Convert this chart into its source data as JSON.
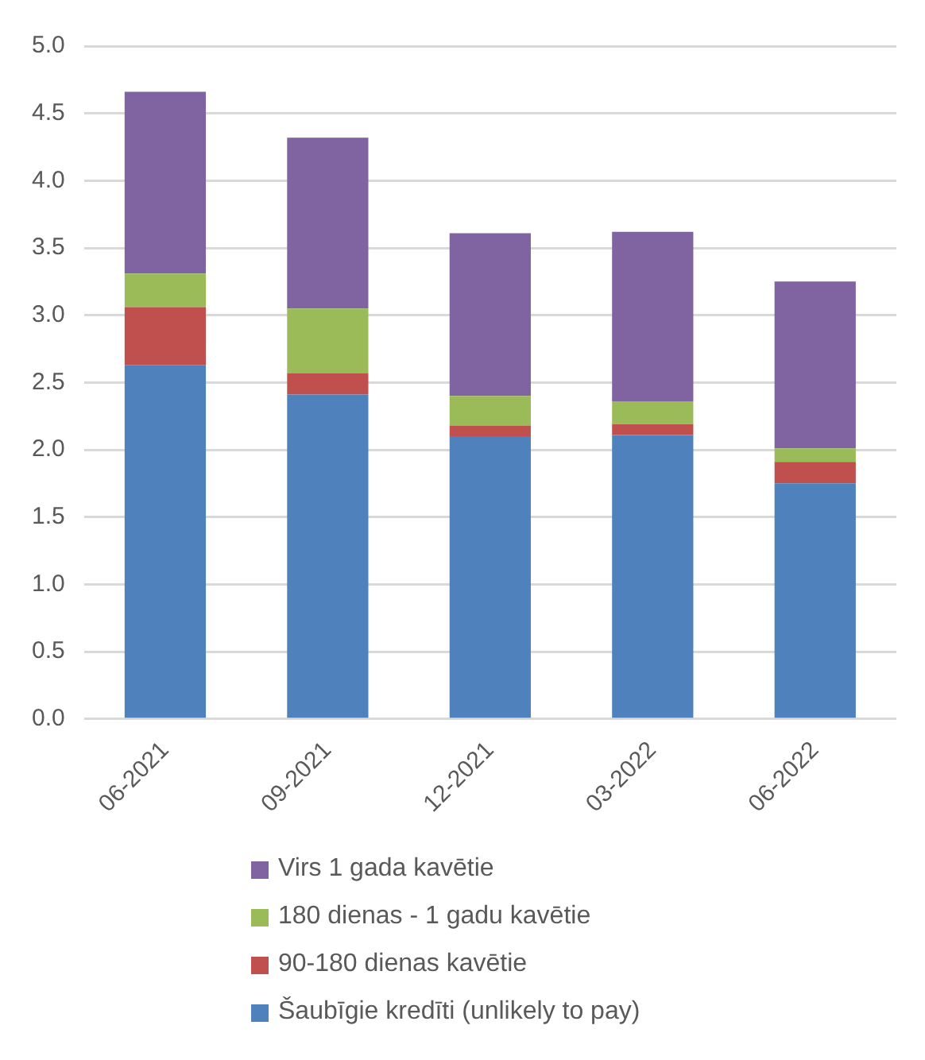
{
  "chart_data": {
    "type": "bar",
    "stacked": true,
    "categories": [
      "06-2021",
      "09-2021",
      "12-2021",
      "03-2022",
      "06-2022"
    ],
    "series": [
      {
        "name": "Šaubīgie kredīti (unlikely to pay)",
        "color": "#4f81bd",
        "values": [
          2.63,
          2.41,
          2.1,
          2.11,
          1.75
        ]
      },
      {
        "name": "90-180 dienas kavētie",
        "color": "#c0504d",
        "values": [
          0.43,
          0.16,
          0.08,
          0.08,
          0.16
        ]
      },
      {
        "name": "180 dienas - 1 gadu kavētie",
        "color": "#9bbb59",
        "values": [
          0.25,
          0.48,
          0.22,
          0.17,
          0.1
        ]
      },
      {
        "name": "Virs 1 gada kavētie",
        "color": "#8064a2",
        "values": [
          1.35,
          1.27,
          1.21,
          1.26,
          1.24
        ]
      }
    ],
    "ylim": [
      0,
      5
    ],
    "yticks": [
      {
        "value": 0,
        "label": "0.0"
      },
      0.5,
      {
        "value": 1,
        "label": "1.0"
      },
      1.5,
      {
        "value": 2,
        "label": "2.0"
      },
      2.5,
      {
        "value": 3,
        "label": "3.0"
      },
      3.5,
      {
        "value": 4,
        "label": "4.0"
      },
      4.5,
      {
        "value": 5,
        "label": "5.0"
      }
    ],
    "grid": "y",
    "legend": "bottom"
  }
}
